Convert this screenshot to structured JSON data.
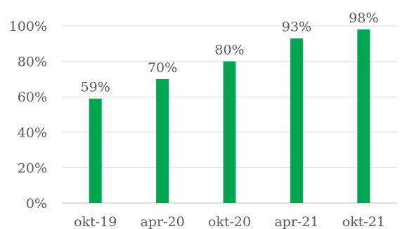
{
  "chart_data": {
    "type": "bar",
    "categories": [
      "okt-19",
      "apr-20",
      "okt-20",
      "apr-21",
      "okt-21"
    ],
    "values": [
      59,
      70,
      80,
      93,
      98
    ],
    "data_labels": [
      "59%",
      "70%",
      "80%",
      "93%",
      "98%"
    ],
    "yticks": [
      0,
      20,
      40,
      60,
      80,
      100
    ],
    "ytick_labels": [
      "0%",
      "20%",
      "40%",
      "60%",
      "80%",
      "100%"
    ],
    "ylim": [
      0,
      100
    ],
    "title": "",
    "xlabel": "",
    "ylabel": "",
    "grid": true,
    "legend": "none",
    "bar_color": "#00a651",
    "grid_color": "#d9d9d9",
    "text_color": "#595959"
  }
}
